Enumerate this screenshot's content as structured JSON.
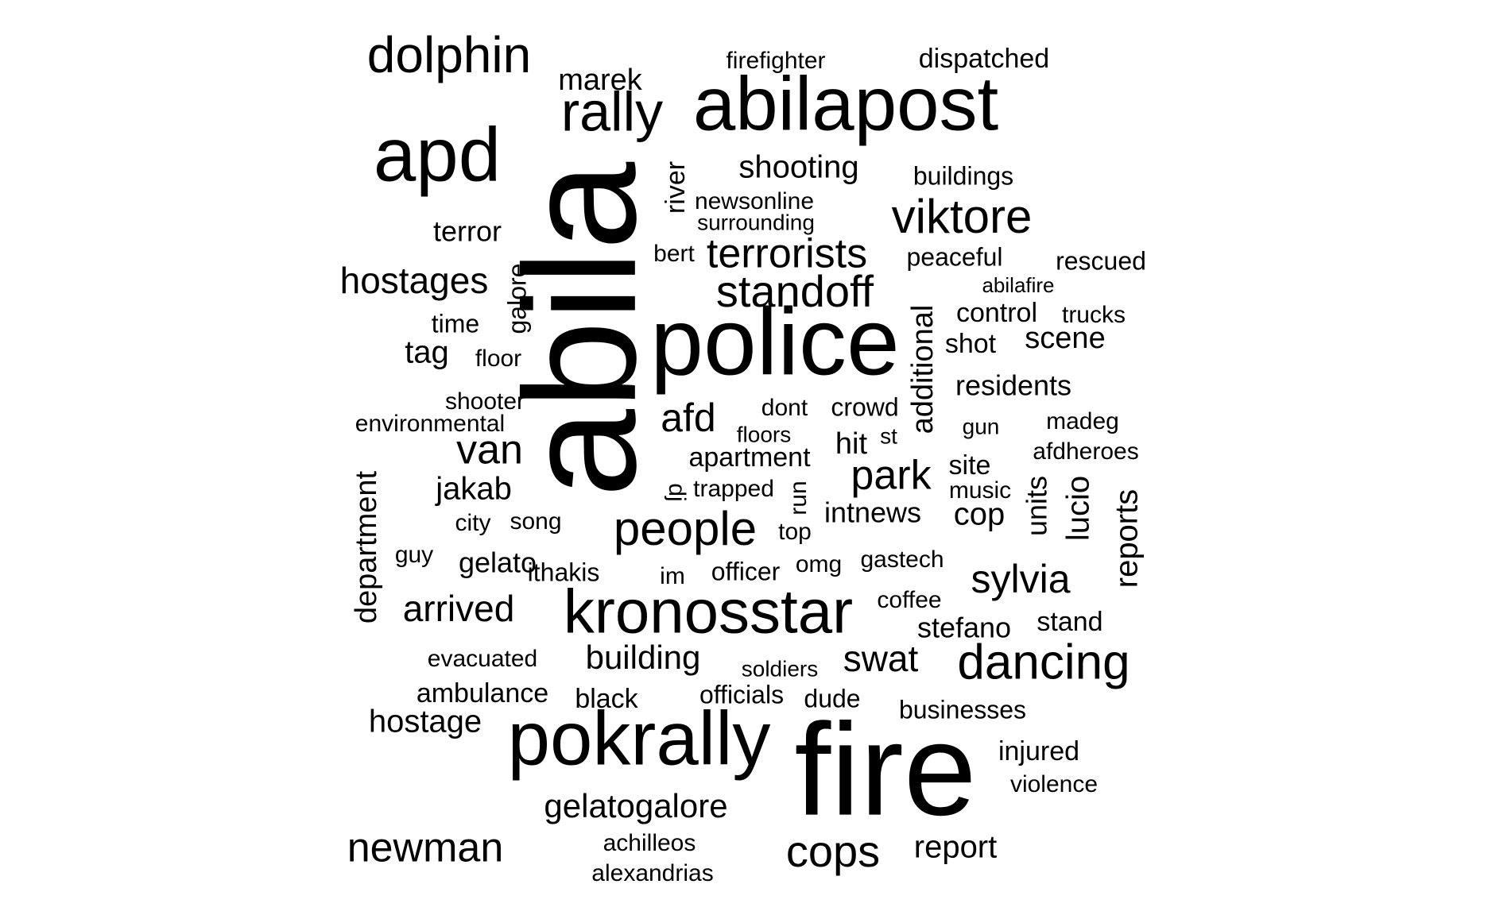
{
  "word_cloud": {
    "text_color": "#000000",
    "background_color": "#ffffff",
    "words": [
      {
        "text": "abila",
        "orientation": "vertical"
      },
      {
        "text": "fire",
        "orientation": "horizontal"
      },
      {
        "text": "police",
        "orientation": "horizontal"
      },
      {
        "text": "pokrally",
        "orientation": "horizontal"
      },
      {
        "text": "abilapost",
        "orientation": "horizontal"
      },
      {
        "text": "apd",
        "orientation": "horizontal"
      },
      {
        "text": "kronosstar",
        "orientation": "horizontal"
      },
      {
        "text": "dolphin",
        "orientation": "horizontal"
      },
      {
        "text": "rally",
        "orientation": "horizontal"
      },
      {
        "text": "viktore",
        "orientation": "horizontal"
      },
      {
        "text": "standoff",
        "orientation": "horizontal"
      },
      {
        "text": "terrorists",
        "orientation": "horizontal"
      },
      {
        "text": "people",
        "orientation": "horizontal"
      },
      {
        "text": "dancing",
        "orientation": "horizontal"
      },
      {
        "text": "cops",
        "orientation": "horizontal"
      },
      {
        "text": "newman",
        "orientation": "horizontal"
      },
      {
        "text": "hostages",
        "orientation": "horizontal"
      },
      {
        "text": "van",
        "orientation": "horizontal"
      },
      {
        "text": "afd",
        "orientation": "horizontal"
      },
      {
        "text": "park",
        "orientation": "horizontal"
      },
      {
        "text": "sylvia",
        "orientation": "horizontal"
      },
      {
        "text": "swat",
        "orientation": "horizontal"
      },
      {
        "text": "arrived",
        "orientation": "horizontal"
      },
      {
        "text": "building",
        "orientation": "horizontal"
      },
      {
        "text": "gelatogalore",
        "orientation": "horizontal"
      },
      {
        "text": "shooting",
        "orientation": "horizontal"
      },
      {
        "text": "marek",
        "orientation": "horizontal"
      },
      {
        "text": "department",
        "orientation": "vertical"
      },
      {
        "text": "additional",
        "orientation": "vertical"
      },
      {
        "text": "report",
        "orientation": "horizontal"
      },
      {
        "text": "cop",
        "orientation": "horizontal"
      },
      {
        "text": "scene",
        "orientation": "horizontal"
      },
      {
        "text": "jakab",
        "orientation": "horizontal"
      },
      {
        "text": "residents",
        "orientation": "horizontal"
      },
      {
        "text": "hostage",
        "orientation": "horizontal"
      },
      {
        "text": "terror",
        "orientation": "horizontal"
      },
      {
        "text": "stefano",
        "orientation": "horizontal"
      },
      {
        "text": "tag",
        "orientation": "horizontal"
      },
      {
        "text": "reports",
        "orientation": "vertical"
      },
      {
        "text": "lucio",
        "orientation": "vertical"
      },
      {
        "text": "units",
        "orientation": "vertical"
      },
      {
        "text": "hit",
        "orientation": "horizontal"
      },
      {
        "text": "apartment",
        "orientation": "horizontal"
      },
      {
        "text": "gelato",
        "orientation": "horizontal"
      },
      {
        "text": "site",
        "orientation": "horizontal"
      },
      {
        "text": "injured",
        "orientation": "horizontal"
      },
      {
        "text": "control",
        "orientation": "horizontal"
      },
      {
        "text": "businesses",
        "orientation": "horizontal"
      },
      {
        "text": "peaceful",
        "orientation": "horizontal"
      },
      {
        "text": "intnews",
        "orientation": "horizontal"
      },
      {
        "text": "ambulance",
        "orientation": "horizontal"
      },
      {
        "text": "dispatched",
        "orientation": "horizontal"
      },
      {
        "text": "stand",
        "orientation": "horizontal"
      },
      {
        "text": "buildings",
        "orientation": "horizontal"
      },
      {
        "text": "shot",
        "orientation": "horizontal"
      },
      {
        "text": "officials",
        "orientation": "horizontal"
      },
      {
        "text": "violence",
        "orientation": "horizontal"
      },
      {
        "text": "rescued",
        "orientation": "horizontal"
      },
      {
        "text": "officer",
        "orientation": "horizontal"
      },
      {
        "text": "black",
        "orientation": "horizontal"
      },
      {
        "text": "dude",
        "orientation": "horizontal"
      },
      {
        "text": "ithakis",
        "orientation": "horizontal"
      },
      {
        "text": "time",
        "orientation": "horizontal"
      },
      {
        "text": "crowd",
        "orientation": "horizontal"
      },
      {
        "text": "achilleos",
        "orientation": "horizontal"
      },
      {
        "text": "alexandrias",
        "orientation": "horizontal"
      },
      {
        "text": "firefighter",
        "orientation": "horizontal"
      },
      {
        "text": "gastech",
        "orientation": "horizontal"
      },
      {
        "text": "coffee",
        "orientation": "horizontal"
      },
      {
        "text": "trucks",
        "orientation": "horizontal"
      },
      {
        "text": "madeg",
        "orientation": "horizontal"
      },
      {
        "text": "afdheroes",
        "orientation": "horizontal"
      },
      {
        "text": "environmental",
        "orientation": "horizontal"
      },
      {
        "text": "evacuated",
        "orientation": "horizontal"
      },
      {
        "text": "newsonline",
        "orientation": "horizontal"
      },
      {
        "text": "surrounding",
        "orientation": "horizontal"
      },
      {
        "text": "floor",
        "orientation": "horizontal"
      },
      {
        "text": "song",
        "orientation": "horizontal"
      },
      {
        "text": "city",
        "orientation": "horizontal"
      },
      {
        "text": "guy",
        "orientation": "horizontal"
      },
      {
        "text": "floors",
        "orientation": "horizontal"
      },
      {
        "text": "dont",
        "orientation": "horizontal"
      },
      {
        "text": "trapped",
        "orientation": "horizontal"
      },
      {
        "text": "music",
        "orientation": "horizontal"
      },
      {
        "text": "top",
        "orientation": "horizontal"
      },
      {
        "text": "omg",
        "orientation": "horizontal"
      },
      {
        "text": "im",
        "orientation": "horizontal"
      },
      {
        "text": "bert",
        "orientation": "horizontal"
      },
      {
        "text": "shooter",
        "orientation": "horizontal"
      },
      {
        "text": "soldiers",
        "orientation": "horizontal"
      },
      {
        "text": "abilafire",
        "orientation": "horizontal"
      },
      {
        "text": "gun",
        "orientation": "horizontal"
      },
      {
        "text": "st",
        "orientation": "horizontal"
      },
      {
        "text": "river",
        "orientation": "vertical"
      },
      {
        "text": "galore",
        "orientation": "vertical"
      },
      {
        "text": "run",
        "orientation": "vertical"
      },
      {
        "text": "dj",
        "orientation": "vertical"
      }
    ]
  }
}
